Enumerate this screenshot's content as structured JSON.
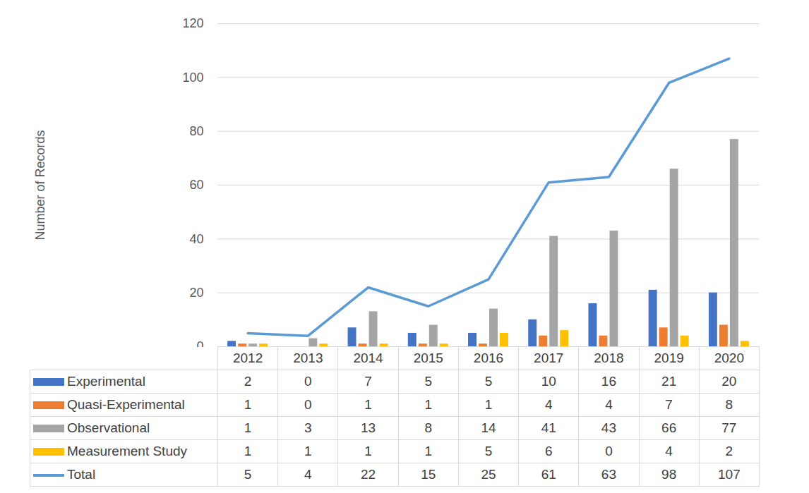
{
  "chart_data": {
    "type": "bar",
    "ylabel": "Number of Records",
    "categories": [
      "2012",
      "2013",
      "2014",
      "2015",
      "2016",
      "2017",
      "2018",
      "2019",
      "2020"
    ],
    "series": [
      {
        "name": "Experimental",
        "color": "#4472c4",
        "values": [
          2,
          0,
          7,
          5,
          5,
          10,
          16,
          21,
          20
        ]
      },
      {
        "name": "Quasi-Experimental",
        "color": "#ed7d31",
        "values": [
          1,
          0,
          1,
          1,
          1,
          4,
          4,
          7,
          8
        ]
      },
      {
        "name": "Observational",
        "color": "#a5a5a5",
        "values": [
          1,
          3,
          13,
          8,
          14,
          41,
          43,
          66,
          77
        ]
      },
      {
        "name": "Measurement Study",
        "color": "#ffc000",
        "values": [
          1,
          1,
          1,
          1,
          5,
          6,
          0,
          4,
          2
        ]
      },
      {
        "name": "Total",
        "type": "line",
        "color": "#5b9bd5",
        "values": [
          5,
          4,
          22,
          15,
          25,
          61,
          63,
          98,
          107
        ]
      }
    ],
    "ylim": [
      0,
      120
    ],
    "yticks": [
      0,
      20,
      40,
      60,
      80,
      100,
      120
    ],
    "grid": true
  }
}
